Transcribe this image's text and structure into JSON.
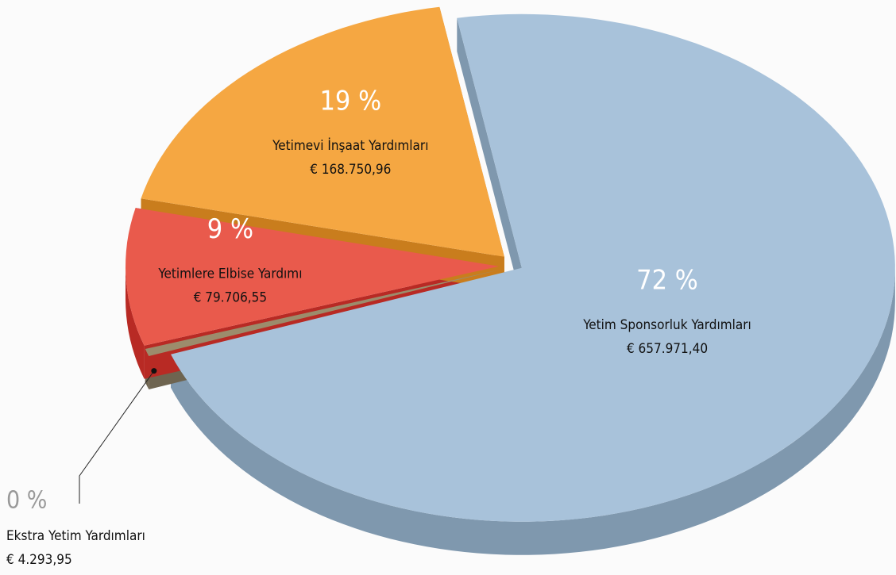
{
  "chart_data": {
    "type": "pie3d",
    "categories": [
      "Yetim Sponsorluk Yardımları",
      "Ekstra Yetim Yardımları",
      "Yetimlere Elbise Yardımı",
      "Yetimevi İnşaat Yardımları"
    ],
    "values": [
      657971.4,
      4293.95,
      79706.55,
      168750.96
    ],
    "value_labels": [
      "€ 657.971,40",
      "€ 4.293,95",
      "€ 79.706,55",
      "€ 168.750,96"
    ],
    "percent_labels": [
      "72 %",
      "0 %",
      "9 %",
      "19 %"
    ],
    "colors": [
      "#a8c2da",
      "#9c8c6c",
      "#e95a4c",
      "#f5a742"
    ],
    "side_colors": [
      "#7f98ae",
      "#6e6450",
      "#b82a24",
      "#c97d1d"
    ]
  }
}
